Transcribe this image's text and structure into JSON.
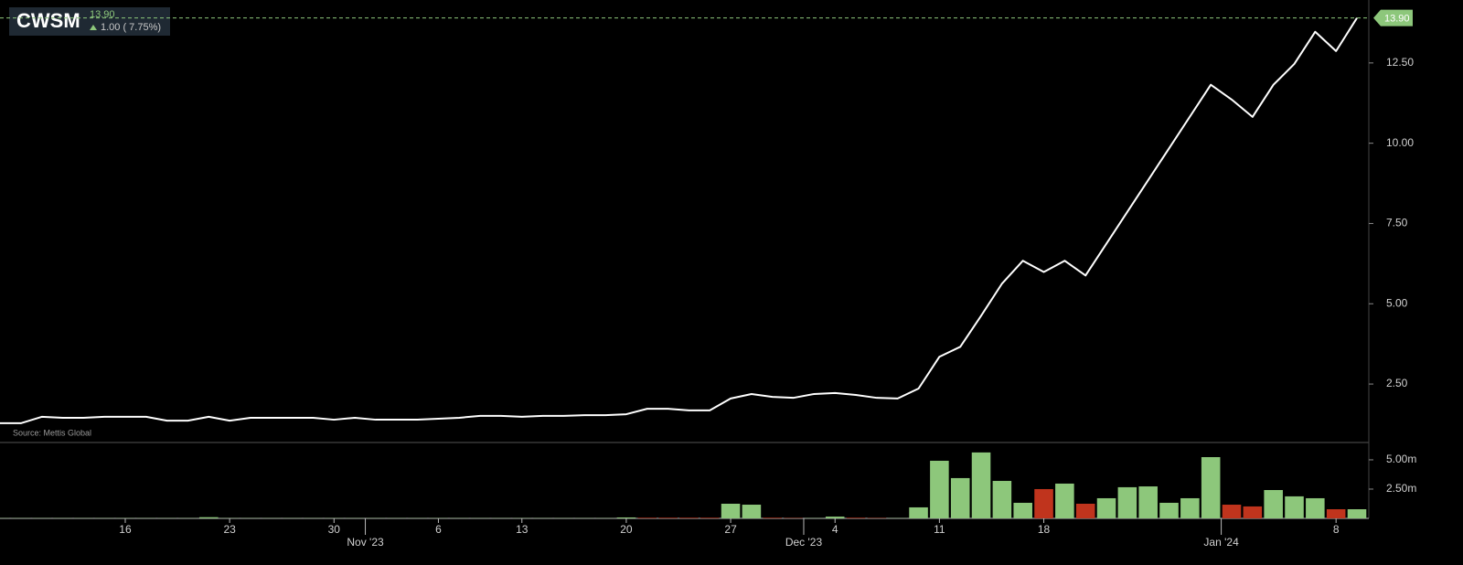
{
  "chart_data": [
    {
      "type": "line",
      "title": "CWSM",
      "last_price": {
        "value": 13.9,
        "label": "13.90"
      },
      "change": "1.00 ( 7.75%)",
      "source": "Source: Mettis Global",
      "color": "#ffffff",
      "last_color": "#8dc77b",
      "values": [
        1.28,
        1.28,
        1.48,
        1.45,
        1.45,
        1.48,
        1.48,
        1.48,
        1.36,
        1.36,
        1.48,
        1.36,
        1.45,
        1.45,
        1.45,
        1.45,
        1.39,
        1.45,
        1.39,
        1.39,
        1.39,
        1.42,
        1.45,
        1.51,
        1.51,
        1.48,
        1.51,
        1.51,
        1.53,
        1.53,
        1.56,
        1.73,
        1.73,
        1.68,
        1.68,
        2.05,
        2.19,
        2.1,
        2.07,
        2.19,
        2.22,
        2.16,
        2.07,
        2.05,
        2.36,
        3.35,
        3.66,
        4.63,
        5.63,
        6.34,
        5.99,
        6.34,
        5.88,
        6.87,
        7.86,
        8.85,
        9.84,
        10.83,
        11.82,
        11.36,
        10.82,
        11.82,
        12.47,
        13.47,
        12.87,
        13.9
      ],
      "ylim": [
        0.68,
        14.46
      ],
      "yticks": [
        {
          "value": 2.5,
          "label": "2.50"
        },
        {
          "value": 5,
          "label": "5.00"
        },
        {
          "value": 7.5,
          "label": "7.50"
        },
        {
          "value": 10,
          "label": "10.00"
        },
        {
          "value": 12.5,
          "label": "12.50"
        }
      ]
    },
    {
      "type": "bar",
      "categories": [
        null,
        null,
        null,
        null,
        null,
        null,
        "16",
        null,
        null,
        null,
        null,
        "23",
        null,
        null,
        null,
        null,
        "30",
        null,
        "Nov '23",
        null,
        null,
        "6",
        null,
        null,
        null,
        "13",
        null,
        null,
        null,
        null,
        "20",
        null,
        null,
        null,
        null,
        "27",
        null,
        null,
        null,
        "Dec '23",
        "4",
        null,
        null,
        null,
        null,
        "11",
        null,
        null,
        null,
        null,
        "18",
        null,
        null,
        null,
        null,
        null,
        null,
        null,
        null,
        "Jan '24",
        null,
        null,
        null,
        null,
        "8",
        null
      ],
      "values": [
        0.02,
        0.02,
        0.02,
        0.02,
        0.02,
        0.02,
        0.02,
        0.02,
        0.02,
        0.02,
        0.1,
        0.02,
        0.02,
        0.02,
        0.02,
        0.02,
        0.02,
        0.02,
        0.02,
        0.02,
        0.02,
        0.02,
        0.02,
        0.02,
        0.02,
        0.02,
        0.02,
        0.02,
        0.02,
        0.02,
        0.08,
        0.05,
        0.05,
        0.05,
        0.05,
        1.25,
        1.17,
        0.05,
        0.03,
        0.02,
        0.15,
        0.05,
        0.03,
        0.02,
        0.94,
        4.92,
        3.44,
        5.63,
        3.2,
        1.33,
        2.5,
        2.97,
        1.25,
        1.72,
        2.66,
        2.73,
        1.33,
        1.72,
        5.23,
        1.17,
        1.02,
        2.42,
        1.88,
        1.72,
        0.78,
        0.78
      ],
      "colors": [
        "#8dc77b",
        "#8dc77b",
        "#8dc77b",
        "#8dc77b",
        "#8dc77b",
        "#8dc77b",
        "#8dc77b",
        "#8dc77b",
        "#8dc77b",
        "#8dc77b",
        "#8dc77b",
        "#8dc77b",
        "#8dc77b",
        "#8dc77b",
        "#8dc77b",
        "#8dc77b",
        "#8dc77b",
        "#8dc77b",
        "#8dc77b",
        "#8dc77b",
        "#8dc77b",
        "#8dc77b",
        "#8dc77b",
        "#8dc77b",
        "#8dc77b",
        "#8dc77b",
        "#8dc77b",
        "#8dc77b",
        "#8dc77b",
        "#8dc77b",
        "#8dc77b",
        "#c0341d",
        "#c0341d",
        "#c0341d",
        "#c0341d",
        "#8dc77b",
        "#8dc77b",
        "#c0341d",
        "#c0341d",
        "#8dc77b",
        "#8dc77b",
        "#c0341d",
        "#c0341d",
        "#8dc77b",
        "#8dc77b",
        "#8dc77b",
        "#8dc77b",
        "#8dc77b",
        "#8dc77b",
        "#8dc77b",
        "#c0341d",
        "#8dc77b",
        "#c0341d",
        "#8dc77b",
        "#8dc77b",
        "#8dc77b",
        "#8dc77b",
        "#8dc77b",
        "#8dc77b",
        "#c0341d",
        "#c0341d",
        "#8dc77b",
        "#8dc77b",
        "#8dc77b",
        "#c0341d",
        "#8dc77b"
      ],
      "ylim": [
        0,
        6.48
      ],
      "yticks": [
        {
          "value": 2.5,
          "label": "2.50m"
        },
        {
          "value": 5,
          "label": "5.00m"
        }
      ]
    }
  ]
}
